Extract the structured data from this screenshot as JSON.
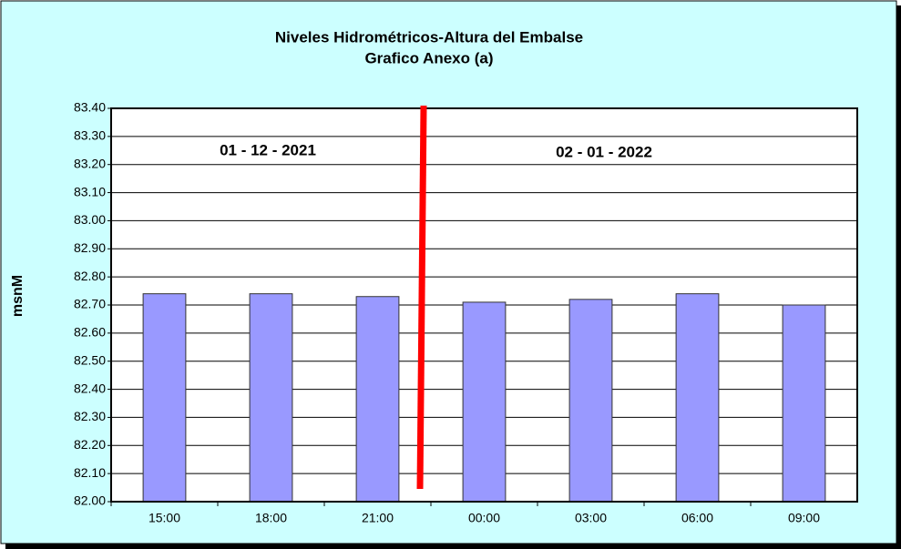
{
  "chart_data": {
    "type": "bar",
    "title": "Niveles Hidrométricos-Altura del Embalse",
    "subtitle": "Grafico Anexo (a)",
    "y_label": "msnM",
    "annotations": [
      "01 - 12 - 2021",
      "02 - 01 - 2022"
    ],
    "categories": [
      "15:00",
      "18:00",
      "21:00",
      "00:00",
      "03:00",
      "06:00",
      "09:00"
    ],
    "values": [
      82.74,
      82.74,
      82.73,
      82.71,
      82.72,
      82.74,
      82.7
    ],
    "color": "#9999ff",
    "ylim": [
      82.0,
      83.4
    ],
    "yticks": [
      {
        "value": 82.0,
        "label": "82.00"
      },
      {
        "value": 82.1,
        "label": "82.10"
      },
      {
        "value": 82.2,
        "label": "82.20"
      },
      {
        "value": 82.3,
        "label": "82.30"
      },
      {
        "value": 82.4,
        "label": "82.40"
      },
      {
        "value": 82.5,
        "label": "82.50"
      },
      {
        "value": 82.6,
        "label": "82.60"
      },
      {
        "value": 82.7,
        "label": "82.70"
      },
      {
        "value": 82.8,
        "label": "82.80"
      },
      {
        "value": 82.9,
        "label": "82.90"
      },
      {
        "value": 83.0,
        "label": "83.00"
      },
      {
        "value": 83.1,
        "label": "83.10"
      },
      {
        "value": 83.2,
        "label": "83.20"
      },
      {
        "value": 83.3,
        "label": "83.30"
      },
      {
        "value": 83.4,
        "label": "83.40"
      }
    ],
    "grid": true
  }
}
